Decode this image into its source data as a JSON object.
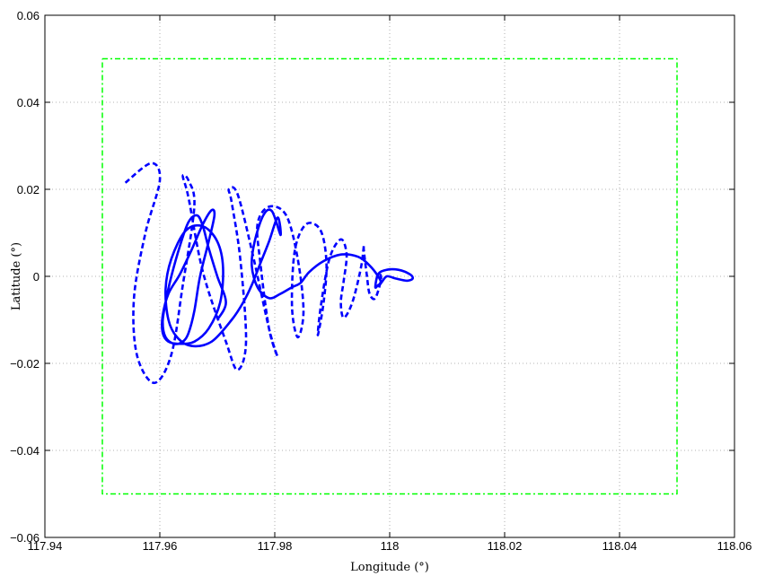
{
  "chart_data": {
    "type": "line",
    "title": "",
    "xlabel": "Longitude (°)",
    "ylabel": "Latitude (°)",
    "xlim": [
      117.94,
      118.06
    ],
    "ylim": [
      -0.06,
      0.06
    ],
    "xticks": [
      117.94,
      117.96,
      117.98,
      118,
      118.02,
      118.04,
      118.06
    ],
    "xtick_labels": [
      "117.94",
      "117.96",
      "117.98",
      "118",
      "118.02",
      "118.04",
      "118.06"
    ],
    "yticks": [
      -0.06,
      -0.04,
      -0.02,
      0,
      0.02,
      0.04,
      0.06
    ],
    "ytick_labels": [
      "−0.06",
      "−0.04",
      "−0.02",
      "0",
      "0.02",
      "0.04",
      "0.06"
    ],
    "grid": true,
    "legend": "none",
    "series": [
      {
        "style": "dashed",
        "color": "#0000ff",
        "x": [
          117.954,
          117.9585,
          117.96,
          117.9575,
          117.9555,
          117.956,
          117.959,
          117.962,
          117.964,
          117.966,
          117.965,
          117.964,
          117.965,
          117.9675,
          117.9715,
          117.9735,
          117.975,
          117.974,
          117.9725,
          117.972,
          117.9735,
          117.976,
          117.979,
          117.9805,
          117.979,
          117.9775,
          117.977,
          117.979,
          117.982,
          117.984,
          117.985,
          117.984,
          117.983,
          117.9835,
          117.9855,
          117.988,
          117.989,
          117.9885,
          117.9875,
          117.988,
          117.9895,
          117.9915,
          117.9925,
          117.992,
          117.9915,
          117.992,
          117.9935,
          117.995,
          117.9955,
          117.9955,
          117.996,
          117.9965,
          117.9975,
          117.9985,
          117.998
        ],
        "y": [
          0.0215,
          0.026,
          0.022,
          0.01,
          -0.005,
          -0.018,
          -0.0245,
          -0.018,
          -0.002,
          0.016,
          0.022,
          0.023,
          0.018,
          0.001,
          -0.015,
          -0.0215,
          -0.015,
          0.004,
          0.017,
          0.02,
          0.019,
          0.006,
          -0.012,
          -0.0185,
          -0.012,
          0.003,
          0.012,
          0.016,
          0.014,
          0.004,
          -0.008,
          -0.014,
          -0.007,
          0.006,
          0.012,
          0.0105,
          0.003,
          -0.006,
          -0.0135,
          -0.007,
          0.004,
          0.0085,
          0.005,
          -0.001,
          -0.006,
          -0.0095,
          -0.006,
          0.002,
          0.007,
          0.006,
          0.0005,
          -0.004,
          -0.005,
          -0.0005,
          0.001
        ]
      },
      {
        "style": "solid",
        "color": "#0000ff",
        "x": [
          117.97,
          117.9715,
          117.97,
          117.9685,
          117.9675,
          117.9665,
          117.965,
          117.9635,
          117.962,
          117.961,
          117.9605,
          117.961,
          117.9625,
          117.964,
          117.965,
          117.966,
          117.967,
          117.9685,
          117.9695,
          117.969,
          117.9675,
          117.9655,
          117.9635,
          117.9615,
          117.9605,
          117.9605,
          117.9615,
          117.9635,
          117.966,
          117.9685,
          117.9705,
          117.971,
          117.97,
          117.9675,
          117.9645,
          117.962,
          117.961,
          117.9615,
          117.963,
          117.9655,
          117.969,
          117.9725,
          117.9745,
          117.976,
          117.9775,
          117.979,
          117.9805,
          117.981,
          117.9795,
          117.978,
          117.9765,
          117.976,
          117.977,
          117.979,
          117.981,
          117.983,
          117.9845,
          117.986,
          117.9885,
          117.9915,
          117.9945,
          117.9965,
          117.998,
          117.9985,
          117.998,
          117.9975,
          117.998,
          117.9995,
          118.0015,
          118.0035,
          118.004,
          118.003,
          118.001,
          117.9995,
          117.9985,
          117.9975
        ],
        "y": [
          -0.01,
          -0.006,
          0.0,
          0.0065,
          0.0115,
          0.014,
          0.0125,
          0.007,
          0.0,
          -0.006,
          -0.0105,
          -0.014,
          -0.0155,
          -0.015,
          -0.013,
          -0.008,
          0.0,
          0.008,
          0.014,
          0.0152,
          0.012,
          0.006,
          0.0005,
          -0.004,
          -0.009,
          -0.013,
          -0.015,
          -0.0155,
          -0.015,
          -0.012,
          -0.006,
          0.002,
          0.008,
          0.0115,
          0.0105,
          0.004,
          -0.003,
          -0.01,
          -0.014,
          -0.016,
          -0.015,
          -0.01,
          -0.006,
          -0.002,
          0.003,
          0.008,
          0.0135,
          0.0095,
          0.015,
          0.014,
          0.008,
          0.0025,
          -0.0025,
          -0.005,
          -0.004,
          -0.0025,
          -0.0015,
          0.001,
          0.0035,
          0.005,
          0.0045,
          0.0025,
          0.0,
          -0.0015,
          -0.002,
          -0.0025,
          0.0005,
          0.0015,
          0.0015,
          0.0005,
          -0.0005,
          -0.001,
          -0.0005,
          0.0,
          -0.0015,
          -0.0025
        ]
      },
      {
        "style": "dashdot",
        "color": "#00ff00",
        "x": [
          117.95,
          118.05,
          118.05,
          117.95,
          117.95
        ],
        "y": [
          0.05,
          0.05,
          -0.05,
          -0.05,
          0.05
        ]
      }
    ]
  }
}
